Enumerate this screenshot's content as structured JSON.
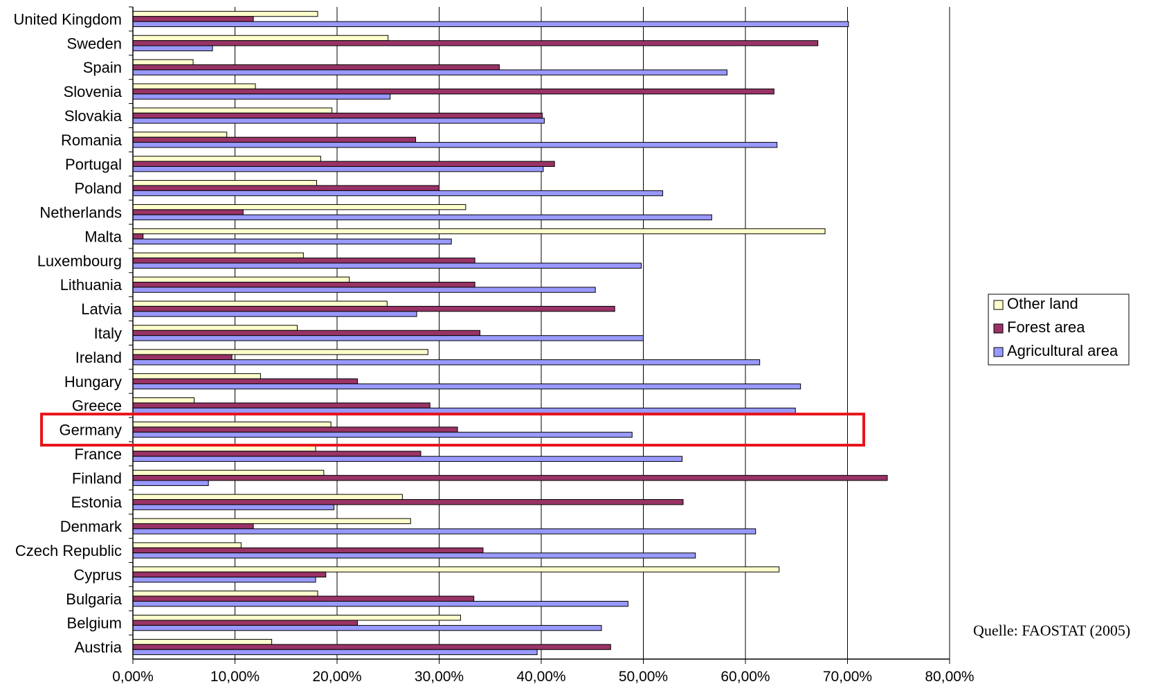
{
  "chart_data": {
    "type": "bar",
    "orientation": "horizontal",
    "categories": [
      "Austria",
      "Belgium",
      "Bulgaria",
      "Cyprus",
      "Czech Republic",
      "Denmark",
      "Estonia",
      "Finland",
      "France",
      "Germany",
      "Greece",
      "Hungary",
      "Ireland",
      "Italy",
      "Latvia",
      "Lithuania",
      "Luxembourg",
      "Malta",
      "Netherlands",
      "Poland",
      "Portugal",
      "Romania",
      "Slovakia",
      "Slovenia",
      "Spain",
      "Sweden",
      "United Kingdom"
    ],
    "series": [
      {
        "name": "Other land",
        "color": "#FFFFCC",
        "values": [
          13.6,
          32.1,
          18.1,
          63.3,
          10.6,
          27.2,
          26.4,
          18.7,
          17.9,
          19.4,
          6.0,
          12.5,
          28.9,
          16.1,
          24.9,
          21.2,
          16.7,
          67.8,
          32.6,
          18.0,
          18.4,
          9.2,
          19.5,
          12.0,
          5.9,
          25.0,
          18.1
        ]
      },
      {
        "name": "Forest area",
        "color": "#993366",
        "values": [
          46.8,
          22.0,
          33.4,
          18.9,
          34.3,
          11.8,
          53.9,
          73.9,
          28.2,
          31.8,
          29.1,
          22.0,
          9.7,
          34.0,
          47.2,
          33.5,
          33.5,
          1.0,
          10.8,
          30.0,
          41.3,
          27.7,
          40.1,
          62.8,
          35.9,
          67.1,
          11.8
        ]
      },
      {
        "name": "Agricultural area",
        "color": "#9999FF",
        "values": [
          39.6,
          45.9,
          48.5,
          17.9,
          55.1,
          61.0,
          19.7,
          7.4,
          53.8,
          48.9,
          64.9,
          65.4,
          61.4,
          50.0,
          27.8,
          45.3,
          49.8,
          31.2,
          56.7,
          51.9,
          40.2,
          63.1,
          40.3,
          25.2,
          58.2,
          7.8,
          70.1
        ]
      }
    ],
    "xlim": [
      0,
      80
    ],
    "xticks": [
      "0,00%",
      "10,00%",
      "20,00%",
      "30,00%",
      "40,00%",
      "50,00%",
      "60,00%",
      "70,00%",
      "80,00%"
    ],
    "grid": "vertical",
    "legend_position": "right",
    "highlight": {
      "category": "Germany",
      "color": "#E8141B"
    }
  },
  "source_note": "Quelle: FAOSTAT (2005)"
}
